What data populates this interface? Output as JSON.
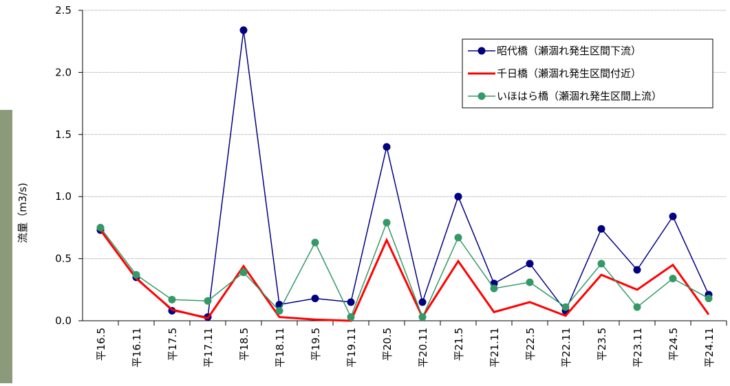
{
  "chart_data": {
    "type": "line",
    "y_label": "流量（m3/s)",
    "categories": [
      "平16.5",
      "平16.11",
      "平17.5",
      "平17.11",
      "平18.5",
      "平18.11",
      "平19.5",
      "平19.11",
      "平20.5",
      "平20.11",
      "平21.5",
      "平21.11",
      "平22.5",
      "平22.11",
      "平23.5",
      "平23.11",
      "平24.5",
      "平24.11"
    ],
    "series": [
      {
        "name": "昭代橋（瀬涸れ発生区間下流）",
        "color": "#000080",
        "marker": true,
        "values": [
          0.73,
          0.35,
          0.08,
          0.03,
          2.34,
          0.13,
          0.18,
          0.15,
          1.4,
          0.15,
          1.0,
          0.3,
          0.46,
          0.08,
          0.74,
          0.41,
          0.84,
          0.21
        ]
      },
      {
        "name": "千日橋（瀬涸れ発生区間付近）",
        "color": "#ff0000",
        "marker": false,
        "values": [
          0.73,
          0.34,
          0.09,
          0.02,
          0.44,
          0.03,
          0.01,
          0.0,
          0.65,
          0.03,
          0.48,
          0.07,
          0.15,
          0.04,
          0.37,
          0.25,
          0.45,
          0.05
        ]
      },
      {
        "name": "いほはら橋（瀬涸れ発生区間上流）",
        "color": "#339966",
        "marker": true,
        "values": [
          0.75,
          0.37,
          0.17,
          0.16,
          0.39,
          0.08,
          0.63,
          0.03,
          0.79,
          0.03,
          0.67,
          0.26,
          0.31,
          0.11,
          0.46,
          0.11,
          0.34,
          0.18
        ]
      }
    ],
    "ylim": [
      0,
      2.5
    ],
    "yticks": [
      {
        "value": 0,
        "label": "0.0"
      },
      0.5,
      {
        "value": 1,
        "label": "1.0"
      },
      1.5,
      {
        "value": 2,
        "label": "2.0"
      },
      2.5
    ],
    "grid": true,
    "legend": "upper-right"
  }
}
